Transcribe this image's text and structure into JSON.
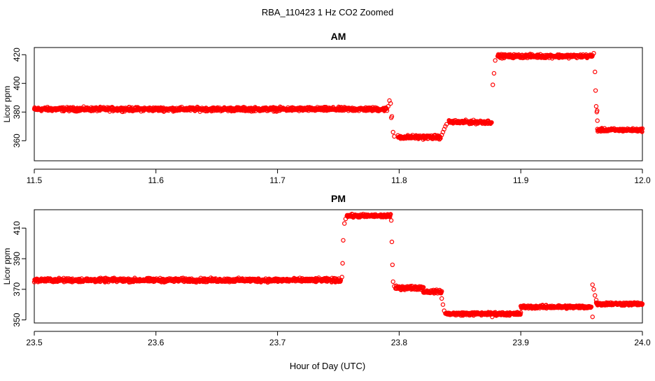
{
  "figure": {
    "title": "RBA_110423  1 Hz CO2 Zoomed",
    "xlabel": "Hour of Day (UTC)"
  },
  "chart_data": [
    {
      "type": "scatter",
      "title": "AM",
      "xlabel": "",
      "ylabel": "Licor ppm",
      "xlim": [
        11.5,
        12.0
      ],
      "ylim": [
        346,
        425
      ],
      "xticks": [
        "11.5",
        "11.6",
        "11.7",
        "11.8",
        "11.9",
        "12.0"
      ],
      "yticks": [
        "360",
        "380",
        "400",
        "420"
      ],
      "marker_color": "#ff0000",
      "segments": [
        {
          "x0": 11.5,
          "x1": 11.79,
          "y": 382.0,
          "spread": 1.3
        },
        {
          "x0": 11.799,
          "x1": 11.834,
          "y": 362.5,
          "spread": 1.3
        },
        {
          "x0": 11.841,
          "x1": 11.876,
          "y": 373.0,
          "spread": 1.2
        },
        {
          "x0": 11.881,
          "x1": 11.959,
          "y": 419.0,
          "spread": 1.2
        },
        {
          "x0": 11.963,
          "x1": 12.0,
          "y": 367.5,
          "spread": 1.0
        }
      ],
      "transitions": [
        {
          "x": 11.791,
          "y": 384
        },
        {
          "x": 11.792,
          "y": 388
        },
        {
          "x": 11.793,
          "y": 386
        },
        {
          "x": 11.7935,
          "y": 376
        },
        {
          "x": 11.794,
          "y": 377
        },
        {
          "x": 11.795,
          "y": 366
        },
        {
          "x": 11.796,
          "y": 363
        },
        {
          "x": 11.835,
          "y": 364
        },
        {
          "x": 11.836,
          "y": 366
        },
        {
          "x": 11.837,
          "y": 368
        },
        {
          "x": 11.838,
          "y": 370
        },
        {
          "x": 11.839,
          "y": 371.5
        },
        {
          "x": 11.877,
          "y": 399
        },
        {
          "x": 11.878,
          "y": 407
        },
        {
          "x": 11.879,
          "y": 416
        },
        {
          "x": 11.96,
          "y": 421
        },
        {
          "x": 11.961,
          "y": 408
        },
        {
          "x": 11.9615,
          "y": 395
        },
        {
          "x": 11.962,
          "y": 384
        },
        {
          "x": 11.9625,
          "y": 380
        },
        {
          "x": 11.9628,
          "y": 381
        },
        {
          "x": 11.963,
          "y": 374
        }
      ]
    },
    {
      "type": "scatter",
      "title": "PM",
      "xlabel": "",
      "ylabel": "Licor ppm",
      "xlim": [
        23.5,
        24.0
      ],
      "ylim": [
        348,
        422
      ],
      "xticks": [
        "23.5",
        "23.6",
        "23.7",
        "23.8",
        "23.9",
        "24.0"
      ],
      "yticks": [
        "350",
        "370",
        "390",
        "410"
      ],
      "marker_color": "#ff0000",
      "segments": [
        {
          "x0": 23.5,
          "x1": 23.752,
          "y": 376.0,
          "spread": 1.2
        },
        {
          "x0": 23.757,
          "x1": 23.793,
          "y": 418.0,
          "spread": 1.0
        },
        {
          "x0": 23.797,
          "x1": 23.82,
          "y": 371.0,
          "spread": 1.2
        },
        {
          "x0": 23.82,
          "x1": 23.835,
          "y": 368.5,
          "spread": 1.0
        },
        {
          "x0": 23.838,
          "x1": 23.9,
          "y": 354.0,
          "spread": 1.0
        },
        {
          "x0": 23.9,
          "x1": 23.958,
          "y": 358.5,
          "spread": 1.0
        },
        {
          "x0": 23.962,
          "x1": 24.0,
          "y": 360.5,
          "spread": 1.0
        }
      ],
      "transitions": [
        {
          "x": 23.753,
          "y": 378
        },
        {
          "x": 23.7535,
          "y": 387
        },
        {
          "x": 23.754,
          "y": 402
        },
        {
          "x": 23.755,
          "y": 413
        },
        {
          "x": 23.756,
          "y": 416
        },
        {
          "x": 23.7935,
          "y": 415
        },
        {
          "x": 23.794,
          "y": 401
        },
        {
          "x": 23.7945,
          "y": 386
        },
        {
          "x": 23.795,
          "y": 375
        },
        {
          "x": 23.796,
          "y": 372
        },
        {
          "x": 23.835,
          "y": 364
        },
        {
          "x": 23.836,
          "y": 360
        },
        {
          "x": 23.837,
          "y": 356
        },
        {
          "x": 23.8765,
          "y": 352
        },
        {
          "x": 23.959,
          "y": 352
        },
        {
          "x": 23.959,
          "y": 373
        },
        {
          "x": 23.96,
          "y": 370
        },
        {
          "x": 23.961,
          "y": 366
        },
        {
          "x": 23.962,
          "y": 363
        }
      ]
    }
  ]
}
